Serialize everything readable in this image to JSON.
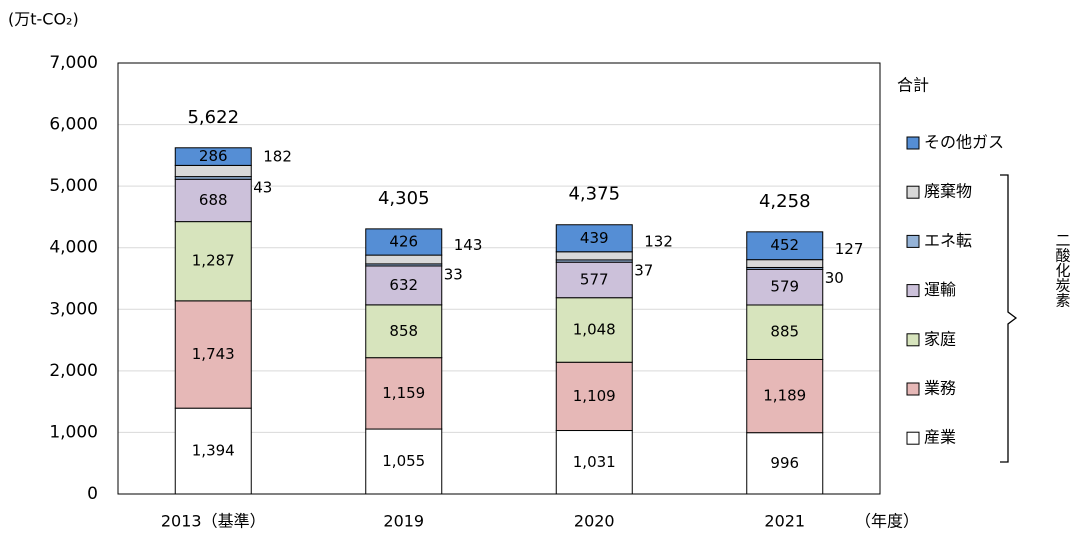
{
  "chart_data": {
    "type": "stacked_bar",
    "y_label": "(万t-CO₂)",
    "x_label": "（年度）",
    "categories": [
      "2013（基準）",
      "2019",
      "2020",
      "2021"
    ],
    "series": [
      {
        "name": "産業",
        "color": "#ffffff",
        "values": [
          1394,
          1055,
          1031,
          996
        ],
        "value_labels": [
          "1,394",
          "1,055",
          "1,031",
          "996"
        ]
      },
      {
        "name": "業務",
        "color": "#e6b8b7",
        "values": [
          1743,
          1159,
          1109,
          1189
        ],
        "value_labels": [
          "1,743",
          "1,159",
          "1,109",
          "1,189"
        ]
      },
      {
        "name": "家庭",
        "color": "#d7e4bd",
        "values": [
          1287,
          858,
          1048,
          885
        ],
        "value_labels": [
          "1,287",
          "858",
          "1,048",
          "885"
        ]
      },
      {
        "name": "運輸",
        "color": "#ccc1da",
        "values": [
          688,
          632,
          577,
          579
        ]
      },
      {
        "name": "エネ転",
        "color": "#95b3d7",
        "values": [
          43,
          33,
          37,
          30
        ]
      },
      {
        "name": "廃棄物",
        "color": "#d9d9d9",
        "values": [
          182,
          143,
          132,
          127
        ]
      },
      {
        "name": "その他ガス",
        "color": "#558ed5",
        "values": [
          286,
          426,
          439,
          452
        ]
      }
    ],
    "totals": {
      "name": "合計",
      "values": [
        5622,
        4305,
        4375,
        4258
      ],
      "value_labels": [
        "5,622",
        "4,305",
        "4,375",
        "4,258"
      ]
    },
    "bracket_label": "二酸化炭素",
    "ylim": [
      0,
      7000
    ],
    "yticks": [
      0,
      {
        "value": 1000,
        "label": "1,000"
      },
      {
        "value": 2000,
        "label": "2,000"
      },
      {
        "value": 3000,
        "label": "3,000"
      },
      {
        "value": 4000,
        "label": "4,000"
      },
      {
        "value": 5000,
        "label": "5,000"
      },
      {
        "value": 6000,
        "label": "6,000"
      },
      {
        "value": 7000,
        "label": "7,000"
      }
    ],
    "grid": true
  }
}
